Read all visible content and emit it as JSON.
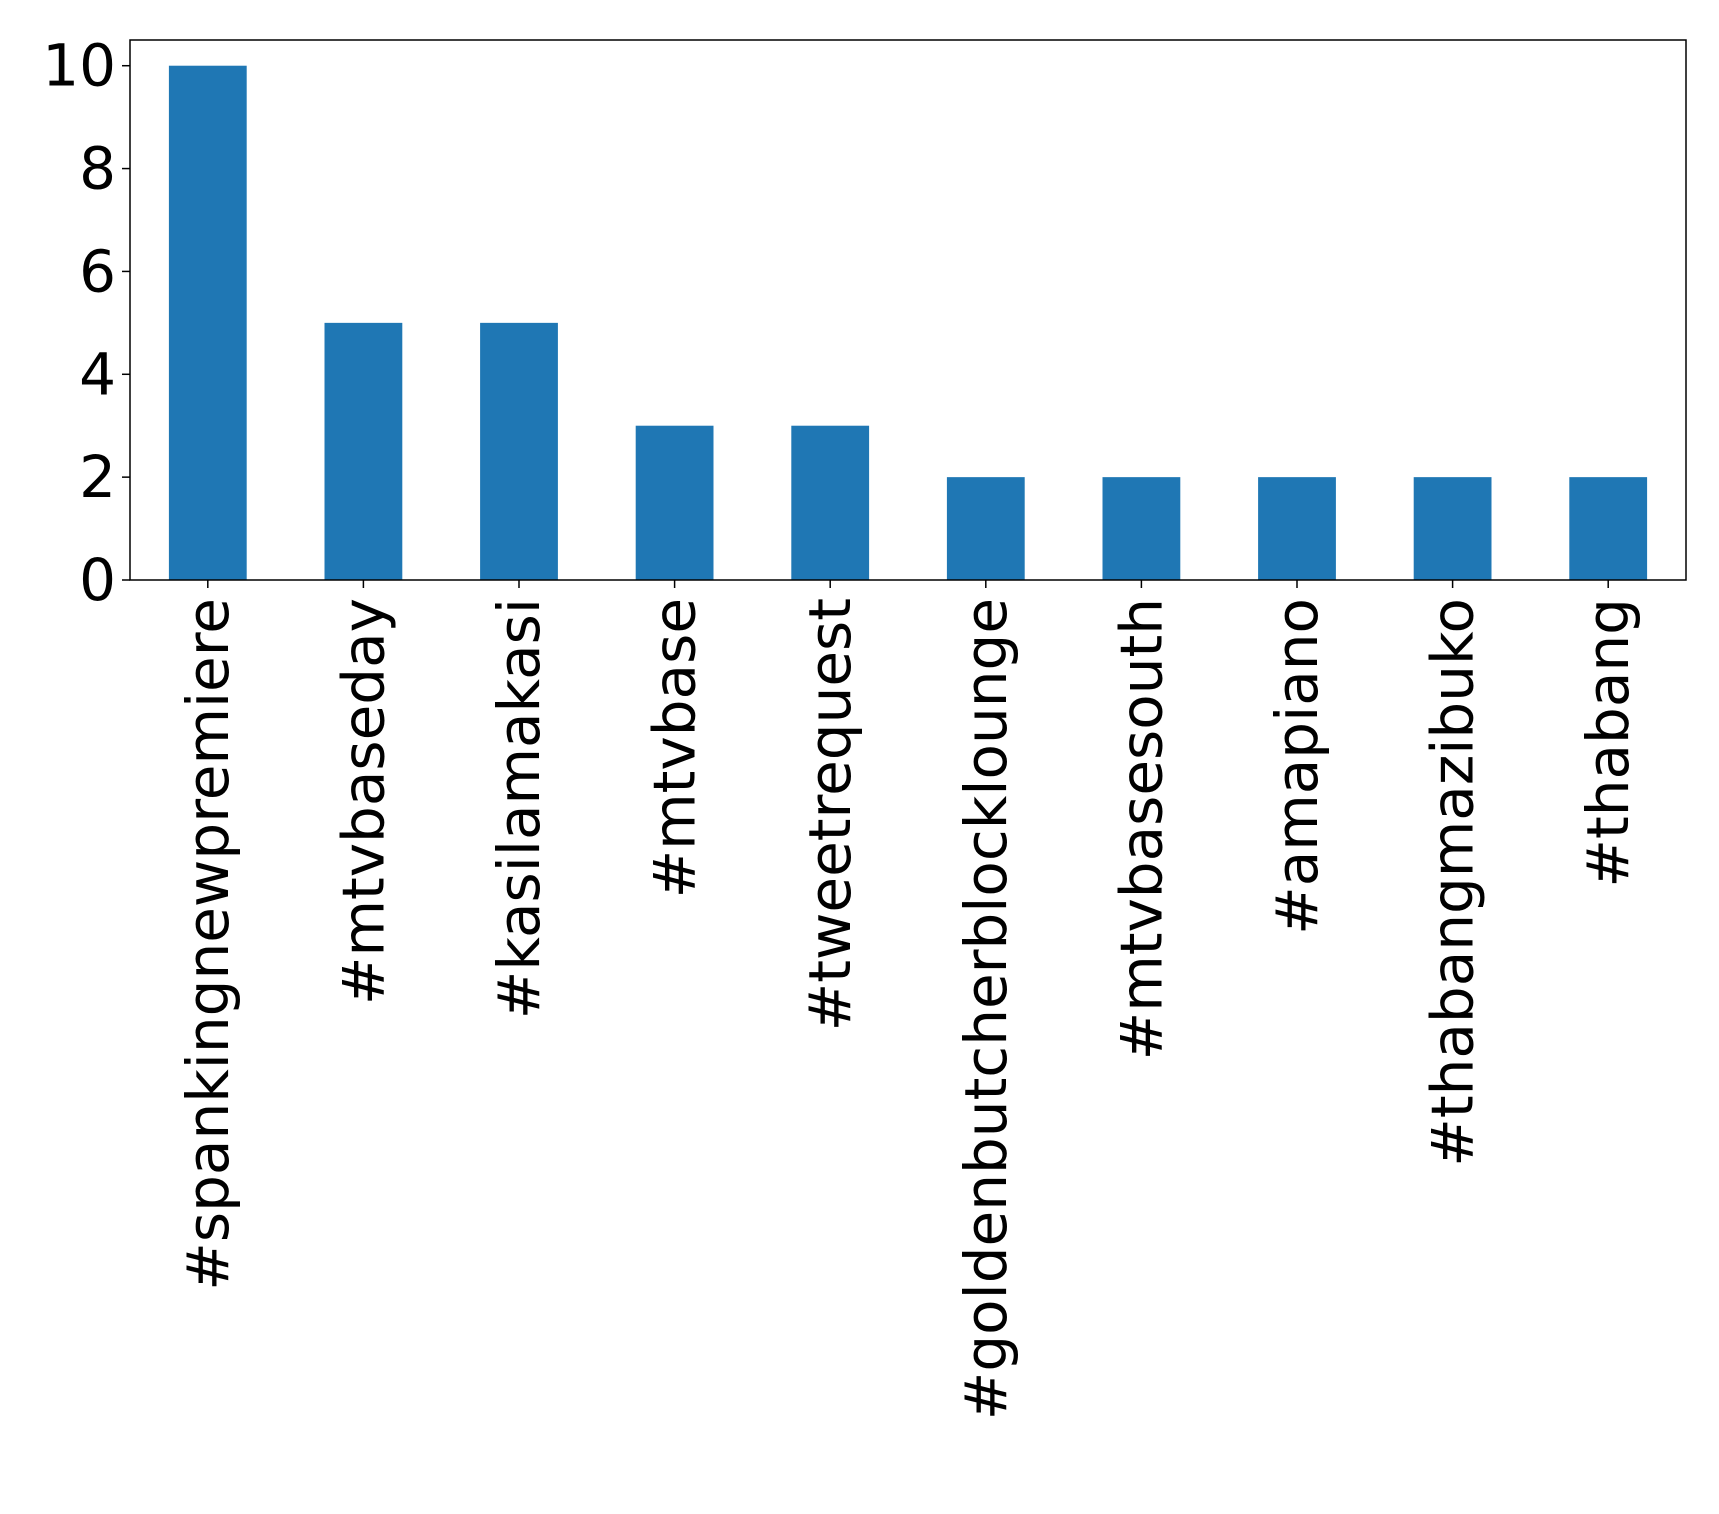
{
  "chart_data": {
    "type": "bar",
    "categories": [
      "#spankingnewpremiere",
      "#mtvbaseday",
      "#kasilamakasi",
      "#mtvbase",
      "#tweetrequest",
      "#goldenbutcherblocklounge",
      "#mtvbasesouth",
      "#amapiano",
      "#thabangmazibuko",
      "#thabang"
    ],
    "values": [
      10,
      5,
      5,
      3,
      3,
      2,
      2,
      2,
      2,
      2
    ],
    "ylim": [
      0,
      10.5
    ],
    "yticks": [
      0,
      2,
      4,
      6,
      8,
      10
    ],
    "bar_color": "#1f77b4",
    "title": "",
    "xlabel": "",
    "ylabel": "",
    "grid": false
  }
}
